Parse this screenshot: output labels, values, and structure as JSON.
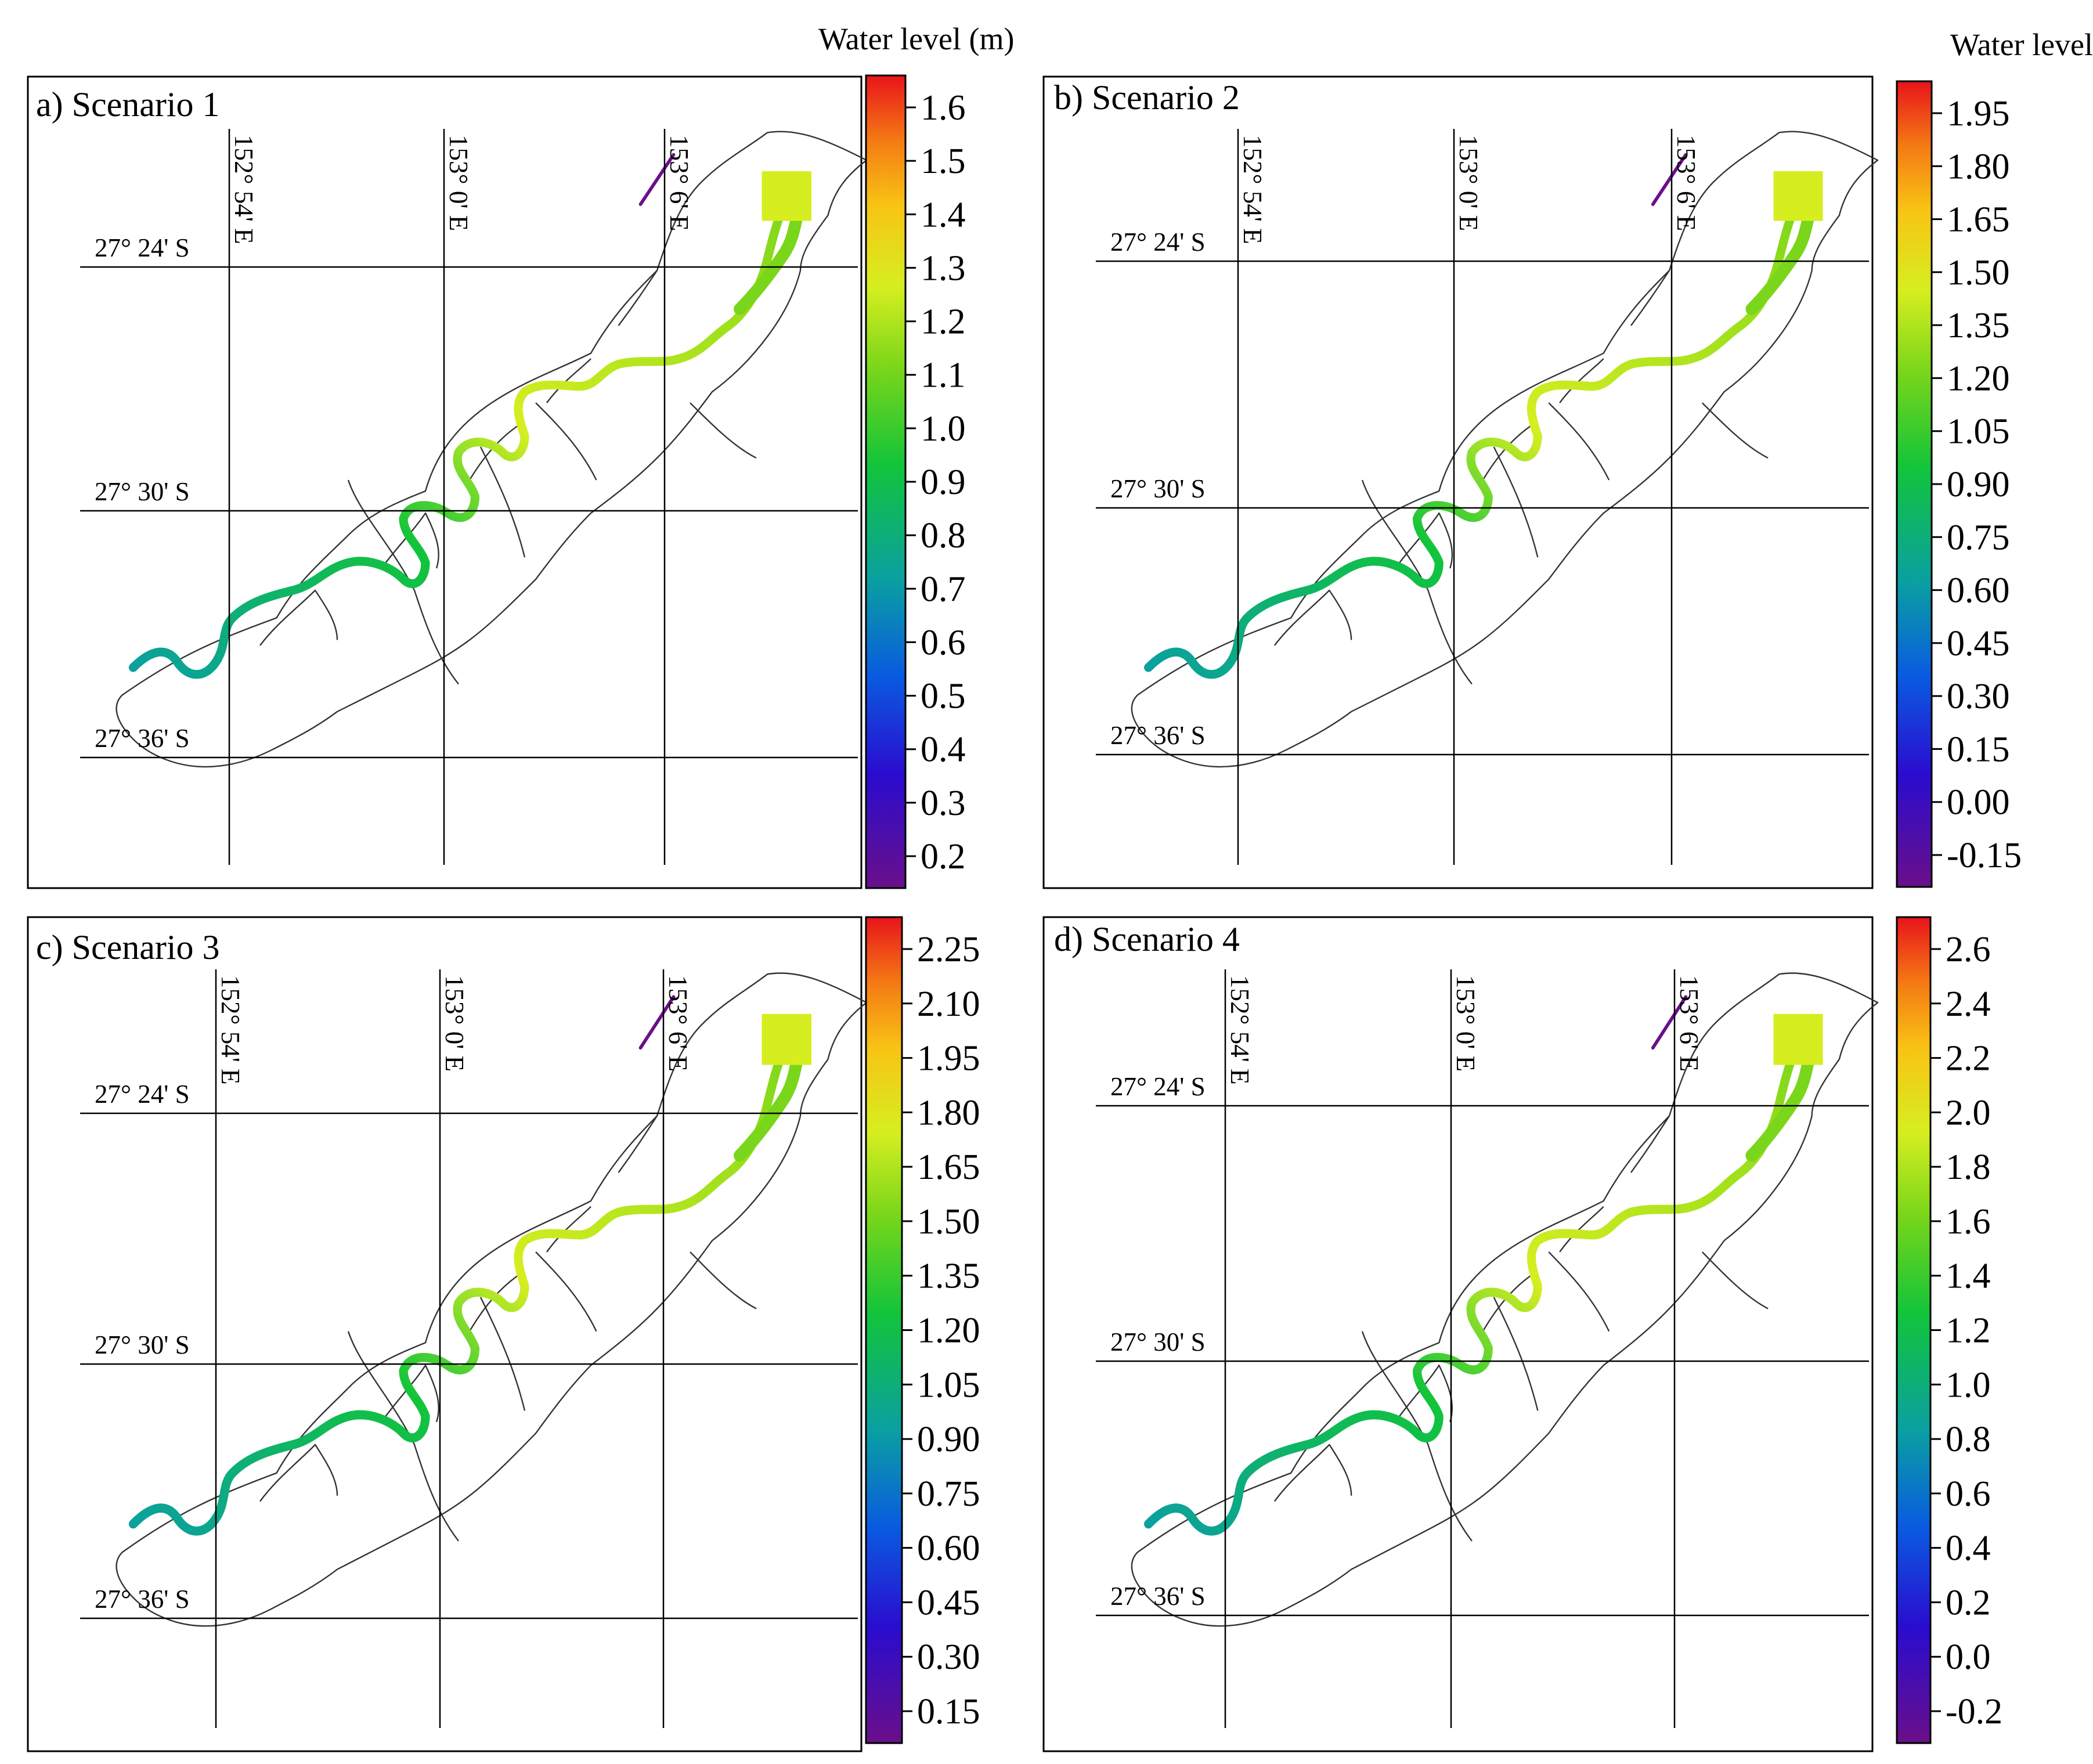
{
  "figure": {
    "colorbar_title": "Water level (m)",
    "lat_labels": [
      "27° 24' S",
      "27° 30' S",
      "27° 36' S"
    ],
    "lon_labels": [
      "152° 54' E",
      "153° 0' E",
      "153° 6' E"
    ],
    "colors": {
      "ramp": [
        "#6a0f8a",
        "#2a0ccf",
        "#0a5ae0",
        "#0aa0a0",
        "#12c43a",
        "#7ad61a",
        "#d6ee20",
        "#f8c414",
        "#f47a14",
        "#e8141a"
      ],
      "outline": "#333333",
      "grid": "#000000"
    }
  },
  "panels": [
    {
      "id": "a",
      "title": "a) Scenario 1",
      "show_cb_title": true,
      "ticks": [
        "1.6",
        "1.5",
        "1.4",
        "1.3",
        "1.2",
        "1.1",
        "1.0",
        "0.9",
        "0.8",
        "0.7",
        "0.6",
        "0.5",
        "0.4",
        "0.3",
        "0.2"
      ]
    },
    {
      "id": "b",
      "title": "b) Scenario 2",
      "show_cb_title": true,
      "ticks": [
        "1.95",
        "1.80",
        "1.65",
        "1.50",
        "1.35",
        "1.20",
        "1.05",
        "0.90",
        "0.75",
        "0.60",
        "0.45",
        "0.30",
        "0.15",
        "0.00",
        "-0.15"
      ]
    },
    {
      "id": "c",
      "title": "c) Scenario 3",
      "show_cb_title": false,
      "ticks": [
        "2.25",
        "2.10",
        "1.95",
        "1.80",
        "1.65",
        "1.50",
        "1.35",
        "1.20",
        "1.05",
        "0.90",
        "0.75",
        "0.60",
        "0.45",
        "0.30",
        "0.15"
      ]
    },
    {
      "id": "d",
      "title": "d) Scenario  4",
      "show_cb_title": false,
      "ticks": [
        "2.6",
        "2.4",
        "2.2",
        "2.0",
        "1.8",
        "1.6",
        "1.4",
        "1.2",
        "1.0",
        "0.8",
        "0.6",
        "0.4",
        "0.2",
        "0.0",
        "-0.2"
      ]
    }
  ],
  "chart_data": {
    "type": "heatmap",
    "variable": "Water level (m)",
    "panels": [
      {
        "title": "a) Scenario 1",
        "colorbar_ticks": [
          1.6,
          1.5,
          1.4,
          1.3,
          1.2,
          1.1,
          1.0,
          0.9,
          0.8,
          0.7,
          0.6,
          0.5,
          0.4,
          0.3,
          0.2
        ],
        "upstream_level": 0.7,
        "mid_level": 1.3,
        "mouth_level": 1.25
      },
      {
        "title": "b) Scenario 2",
        "colorbar_ticks": [
          1.95,
          1.8,
          1.65,
          1.5,
          1.35,
          1.2,
          1.05,
          0.9,
          0.75,
          0.6,
          0.45,
          0.3,
          0.15,
          0.0,
          -0.15
        ],
        "upstream_level": 0.75,
        "mid_level": 1.5,
        "mouth_level": 1.5
      },
      {
        "title": "c) Scenario 3",
        "colorbar_ticks": [
          2.25,
          2.1,
          1.95,
          1.8,
          1.65,
          1.5,
          1.35,
          1.2,
          1.05,
          0.9,
          0.75,
          0.6,
          0.45,
          0.3,
          0.15
        ],
        "upstream_level": 0.6,
        "mid_level": 1.8,
        "mouth_level": 1.75
      },
      {
        "title": "d) Scenario  4",
        "colorbar_ticks": [
          2.6,
          2.4,
          2.2,
          2.0,
          1.8,
          1.6,
          1.4,
          1.2,
          1.0,
          0.8,
          0.6,
          0.4,
          0.2,
          0.0,
          -0.2
        ],
        "upstream_level": 0.8,
        "mid_level": 2.0,
        "mouth_level": 1.8
      }
    ]
  }
}
